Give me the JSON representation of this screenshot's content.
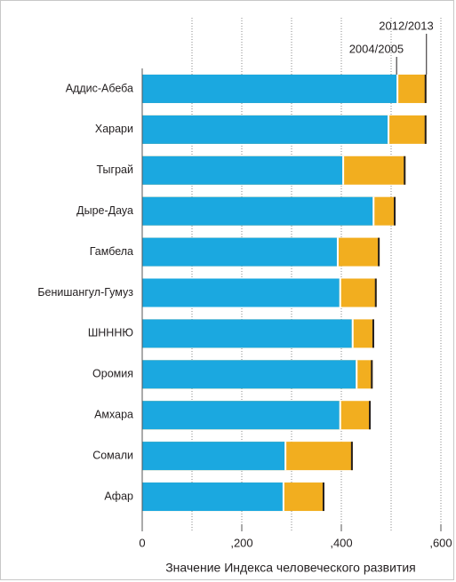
{
  "chart_data": {
    "type": "overlap-bar",
    "orientation": "horizontal",
    "categories": [
      "Аддис-Абеба",
      "Харари",
      "Тыграй",
      "Дыре-Дауа",
      "Гамбела",
      "Бенишангул-Гумуз",
      "ШНННЮ",
      "Оромия",
      "Амхара",
      "Сомали",
      "Афар"
    ],
    "series": [
      {
        "name": "2012/2013",
        "color": "#f2ae1f",
        "values": [
          0.571,
          0.571,
          0.529,
          0.509,
          0.477,
          0.471,
          0.466,
          0.463,
          0.459,
          0.423,
          0.366
        ]
      },
      {
        "name": "2004/2005",
        "color": "#1ba8e0",
        "values": [
          0.511,
          0.493,
          0.402,
          0.463,
          0.391,
          0.396,
          0.421,
          0.429,
          0.396,
          0.286,
          0.282
        ]
      }
    ],
    "xlabel": "Значение Индекса человеческого развития",
    "xlim": [
      0,
      0.6
    ],
    "xticks": [
      0,
      {
        "value": 0.2,
        "label": ",200"
      },
      {
        "value": 0.4,
        "label": ",400"
      },
      {
        "value": 0.6,
        "label": ",600"
      }
    ],
    "xgrid": [
      0.1,
      0.2,
      0.3,
      0.4,
      0.5,
      0.6
    ],
    "grid": true
  }
}
